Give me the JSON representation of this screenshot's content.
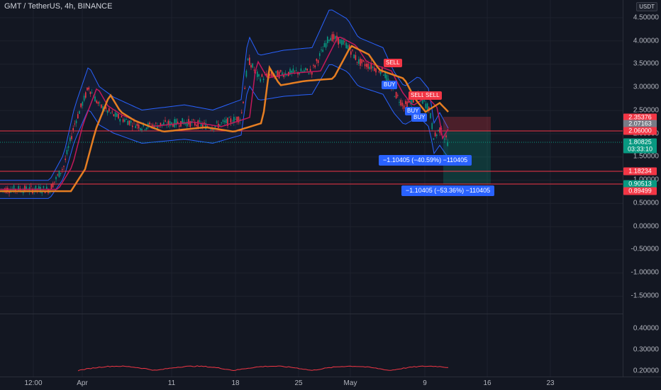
{
  "header": {
    "symbol_title": "GMT / TetherUS, 4h, BINANCE"
  },
  "price_scale": {
    "currency": "USDT",
    "labels": [
      "4.50000",
      "4.00000",
      "3.50000",
      "3.00000",
      "2.50000",
      "2.00000",
      "1.50000",
      "1.00000",
      "0.50000",
      "0.00000",
      "-0.50000",
      "-1.00000",
      "-1.50000"
    ],
    "indicator_labels": [
      "0.40000",
      "0.30000",
      "0.20000"
    ]
  },
  "price_tags": [
    {
      "text": "2.35376",
      "color": "#f23645"
    },
    {
      "text": "2.07163",
      "color": "#787b86"
    },
    {
      "text": "2.06000",
      "color": "#f23645"
    },
    {
      "text": "1.80825",
      "color": "#089981"
    },
    {
      "text": "03:33:10",
      "color": "#089981"
    },
    {
      "text": "1.18234",
      "color": "#f23645"
    },
    {
      "text": "0.90513",
      "color": "#089981"
    },
    {
      "text": "0.89499",
      "color": "#f23645"
    }
  ],
  "time_axis": {
    "labels": [
      "12:00",
      "Apr",
      "11",
      "18",
      "25",
      "May",
      "9",
      "16",
      "23"
    ]
  },
  "signals": [
    {
      "text": "SELL",
      "type": "sell"
    },
    {
      "text": "BUY",
      "type": "buy"
    },
    {
      "text": "SELL",
      "type": "sell"
    },
    {
      "text": "SELL",
      "type": "sell"
    },
    {
      "text": "BUY",
      "type": "buy"
    },
    {
      "text": "BUY",
      "type": "buy"
    }
  ],
  "pnl_labels": [
    "−1.10405 (−40.59%) −110405",
    "−1.10405 (−53.36%) −110405"
  ],
  "colors": {
    "background": "#131722",
    "up": "#089981",
    "down": "#f23645",
    "band": "#2962ff",
    "ema_slow": "#e67e22",
    "ema_fast": "#c2185b"
  }
}
